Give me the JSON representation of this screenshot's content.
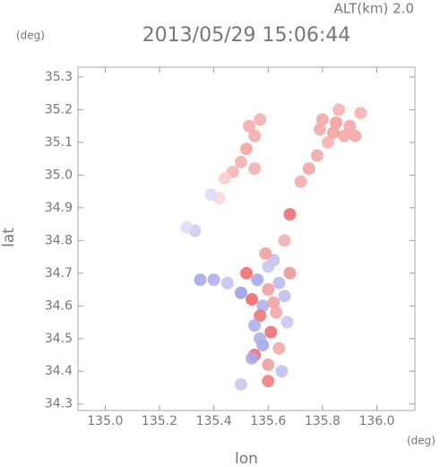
{
  "chart_data": {
    "type": "scatter",
    "title": "2013/05/29 15:06:44",
    "subtitle": "ALT(km) 2.0",
    "y_unit": "(deg)",
    "x_unit": "(deg)",
    "x_label": "lon",
    "y_label": "lat",
    "xlim": [
      134.9,
      136.14
    ],
    "ylim": [
      34.28,
      35.33
    ],
    "xticks": [
      {
        "value": 135.0,
        "label": "135.0"
      },
      135.2,
      135.4,
      135.6,
      135.8,
      {
        "value": 136.0,
        "label": "136.0"
      }
    ],
    "yticks": [
      34.3,
      34.4,
      34.5,
      34.6,
      34.7,
      34.8,
      34.9,
      {
        "value": 35.0,
        "label": "35.0"
      },
      35.1,
      35.2,
      35.3
    ],
    "x": [
      135.8,
      135.85,
      135.9,
      135.94,
      135.88,
      135.82,
      135.78,
      135.75,
      135.72,
      135.86,
      135.92,
      135.84,
      135.79,
      135.57,
      135.55,
      135.52,
      135.5,
      135.47,
      135.44,
      135.55,
      135.53,
      135.42,
      135.39,
      135.33,
      135.3,
      135.35,
      135.4,
      135.45,
      135.62,
      135.6,
      135.66,
      135.68,
      135.52,
      135.56,
      135.6,
      135.64,
      135.68,
      135.54,
      135.58,
      135.62,
      135.66,
      135.5,
      135.57,
      135.63,
      135.55,
      135.61,
      135.67,
      135.59,
      135.55,
      135.58,
      135.6,
      135.65,
      135.5,
      135.57,
      135.64,
      135.6,
      135.54
    ],
    "y": [
      35.17,
      35.16,
      35.15,
      35.19,
      35.12,
      35.1,
      35.06,
      35.02,
      34.98,
      35.2,
      35.12,
      35.13,
      35.14,
      35.17,
      35.12,
      35.08,
      35.04,
      35.01,
      34.99,
      35.02,
      35.15,
      34.93,
      34.94,
      34.83,
      34.84,
      34.68,
      34.68,
      34.67,
      34.74,
      34.72,
      34.8,
      34.88,
      34.7,
      34.68,
      34.65,
      34.67,
      34.7,
      34.62,
      34.6,
      34.61,
      34.63,
      34.64,
      34.57,
      34.58,
      34.54,
      34.52,
      34.55,
      34.76,
      34.45,
      34.48,
      34.42,
      34.4,
      34.36,
      34.5,
      34.47,
      34.37,
      34.44
    ],
    "colors": [
      "#f4a8a8",
      "#f2a0a0",
      "#f4a8a8",
      "#f6b0b0",
      "#f4a8a8",
      "#f6b4b4",
      "#f4a8a8",
      "#f2a6a6",
      "#f4acac",
      "#f6b2b2",
      "#f4a8a8",
      "#f2a2a2",
      "#f4a8a8",
      "#f4b0b0",
      "#f4aaaa",
      "#f2a6a6",
      "#f4aeae",
      "#f6b6b6",
      "#f8cccc",
      "#f4b0b0",
      "#f4acac",
      "#f8d8d8",
      "#dcdcf6",
      "#ccccf2",
      "#dcdcf6",
      "#a8a8ec",
      "#b0b0ee",
      "#c4c4f2",
      "#c0c0f0",
      "#c8c8f2",
      "#f0b0b0",
      "#ee7070",
      "#ee7070",
      "#a8a8ec",
      "#f0a0a0",
      "#b8b8f0",
      "#e89898",
      "#ee6b6b",
      "#b0b0ee",
      "#f4a0a0",
      "#c0c0f0",
      "#a0a0ea",
      "#ee7878",
      "#f4a8a8",
      "#b0b0ee",
      "#ee7070",
      "#c8c8f2",
      "#f0a0a0",
      "#ee7070",
      "#a8a8ec",
      "#f0a0a0",
      "#c0c0f0",
      "#c8c8f2",
      "#b0b0ee",
      "#f4a8a8",
      "#ee8080",
      "#a8a8ec"
    ]
  }
}
